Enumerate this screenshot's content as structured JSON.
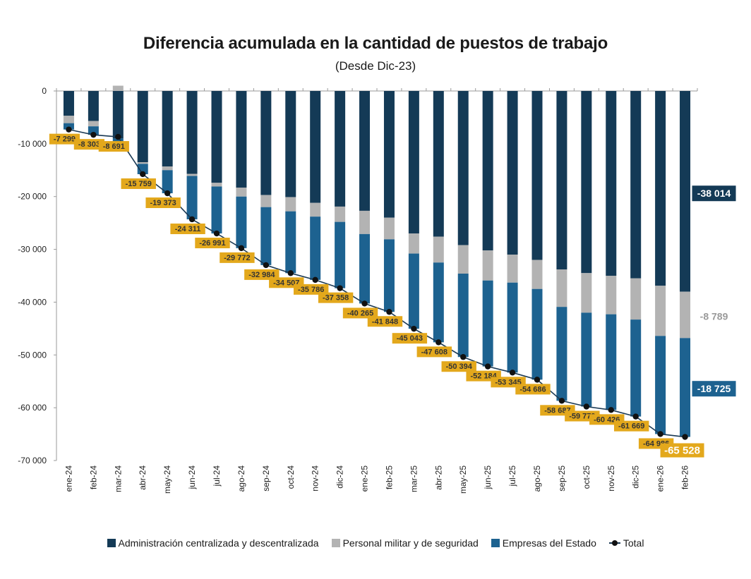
{
  "chart_data": {
    "type": "bar",
    "stacked": true,
    "title": "Diferencia acumulada en la cantidad de puestos de trabajo",
    "subtitle": "(Desde Dic-23)",
    "ylim": [
      -70000,
      0
    ],
    "yticks": [
      "0",
      "-10 000",
      "-20 000",
      "-30 000",
      "-40 000",
      "-50 000",
      "-60 000",
      "-70 000"
    ],
    "ytick_values": [
      0,
      -10000,
      -20000,
      -30000,
      -40000,
      -50000,
      -60000,
      -70000
    ],
    "categories": [
      "ene-24",
      "feb-24",
      "mar-24",
      "abr-24",
      "may-24",
      "jun-24",
      "jul-24",
      "ago-24",
      "sep-24",
      "oct-24",
      "nov-24",
      "dic-24",
      "ene-25",
      "feb-25",
      "mar-25",
      "abr-25",
      "may-25",
      "jun-25",
      "jul-25",
      "ago-25",
      "sep-25",
      "oct-25",
      "nov-25",
      "dic-25",
      "ene-26",
      "feb-26"
    ],
    "series": [
      {
        "name": "Administración centralizada y descentralizada",
        "color": "#143a56",
        "values": [
          -4700,
          -5700,
          -9000,
          -13500,
          -14300,
          -15700,
          -17400,
          -18300,
          -19700,
          -20100,
          -21200,
          -21900,
          -22700,
          -24000,
          -27000,
          -27600,
          -29200,
          -30200,
          -31000,
          -32000,
          -33800,
          -34500,
          -35000,
          -35500,
          -36900,
          -38014
        ]
      },
      {
        "name": "Personal militar y de seguridad",
        "color": "#b3b3b3",
        "values": [
          -1400,
          -1000,
          1000,
          -300,
          -700,
          -400,
          -700,
          -1700,
          -2300,
          -2700,
          -2600,
          -2900,
          -4400,
          -4100,
          -3800,
          -4900,
          -5400,
          -5700,
          -5300,
          -5500,
          -7100,
          -7500,
          -7300,
          -7800,
          -9500,
          -8789
        ]
      },
      {
        "name": "Empresas del Estado",
        "color": "#1d6290",
        "values": [
          -1199,
          -1603,
          -691,
          -1959,
          -4373,
          -8211,
          -8891,
          -9772,
          -10984,
          -11707,
          -11986,
          -12558,
          -13165,
          -13748,
          -14243,
          -15108,
          -15794,
          -16281,
          -17045,
          -17186,
          -17787,
          -17779,
          -18126,
          -18369,
          -18586,
          -18725
        ]
      }
    ],
    "total": {
      "name": "Total",
      "values": [
        -7299,
        -8303,
        -8691,
        -15759,
        -19373,
        -24311,
        -26991,
        -29772,
        -32984,
        -34507,
        -35786,
        -37358,
        -40265,
        -41848,
        -45043,
        -47608,
        -50394,
        -52184,
        -53345,
        -54686,
        -58687,
        -59779,
        -60426,
        -61669,
        -64986,
        -65528
      ],
      "labels": [
        "-7 299",
        "-8 303",
        "-8 691",
        "-15 759",
        "-19 373",
        "-24 311",
        "-26 991",
        "-29 772",
        "-32 984",
        "-34 507",
        "-35 786",
        "-37 358",
        "-40 265",
        "-41 848",
        "-45 043",
        "-47 608",
        "-50 394",
        "-52 184",
        "-53 345",
        "-54 686",
        "-58 687",
        "-59 779",
        "-60 426",
        "-61 669",
        "-64 986",
        "-65 528"
      ]
    },
    "end_labels": {
      "admin": "-38 014",
      "militar": "-8 789",
      "empresas": "-18 725"
    },
    "colors": {
      "label_bg": "#e3a81c",
      "total_line": "#1b3a55",
      "total_marker": "#111111"
    }
  },
  "legend": {
    "admin": "Administración centralizada y descentralizada",
    "militar": "Personal militar y de seguridad",
    "empresas": "Empresas del Estado",
    "total": "Total"
  }
}
